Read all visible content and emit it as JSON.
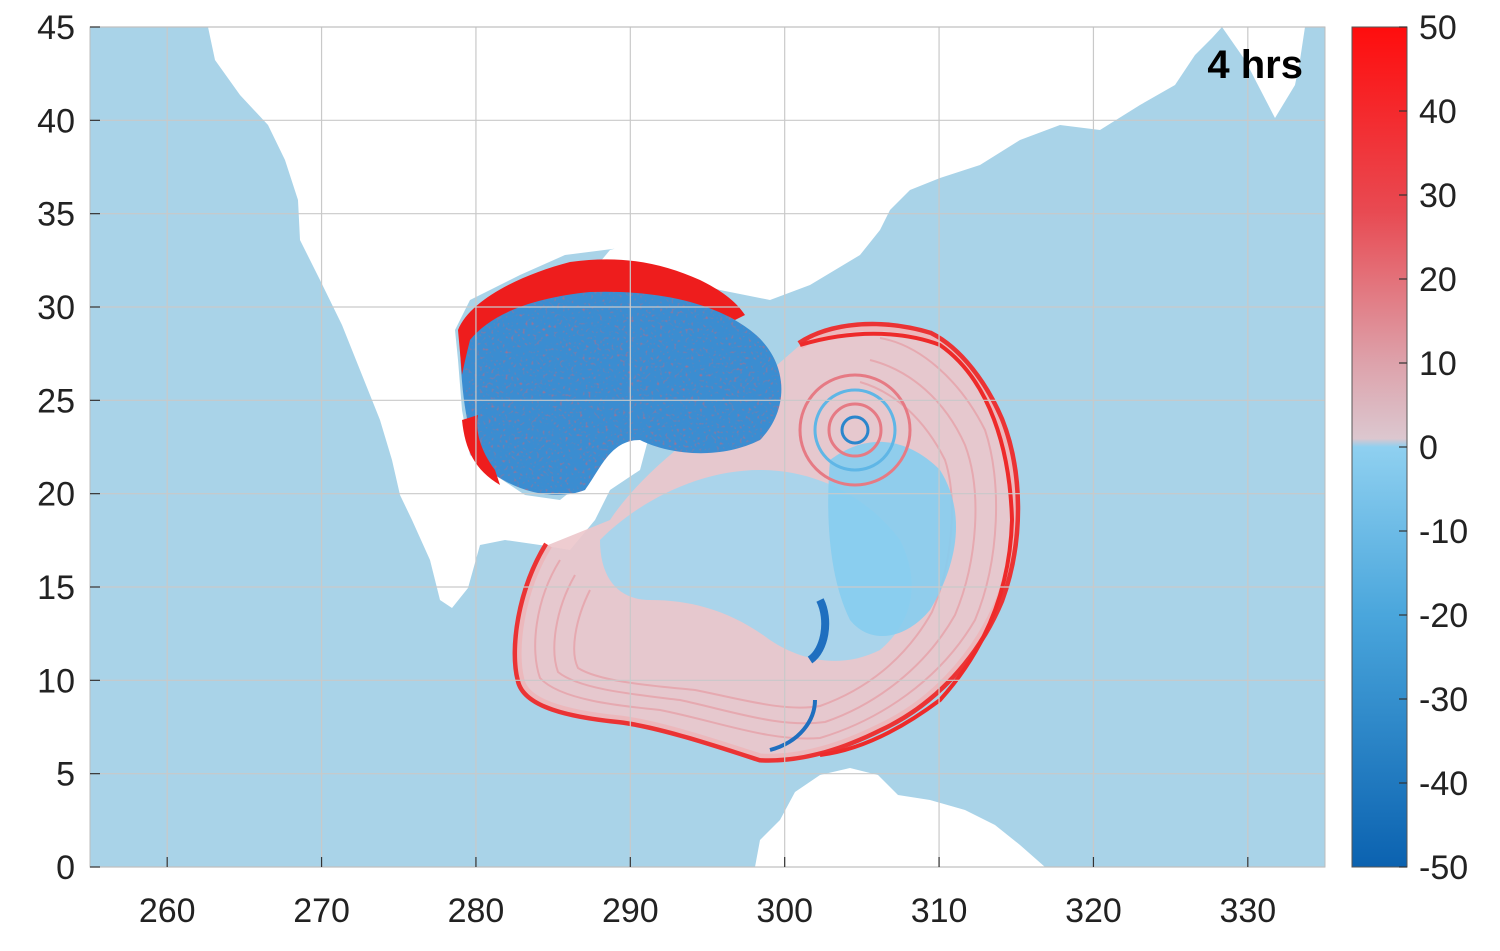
{
  "chart_data": {
    "type": "heatmap",
    "title": "",
    "annotation": "4 hrs",
    "xlabel": "",
    "ylabel": "",
    "xlim": [
      255,
      335
    ],
    "ylim": [
      0,
      45
    ],
    "x_ticks": [
      260,
      270,
      280,
      290,
      300,
      310,
      320,
      330
    ],
    "y_ticks": [
      0,
      5,
      10,
      15,
      20,
      25,
      30,
      35,
      40,
      45
    ],
    "grid": true,
    "colorbar": {
      "range": [
        -50,
        50
      ],
      "ticks": [
        50,
        40,
        30,
        20,
        10,
        0,
        -10,
        -20,
        -30,
        -40,
        -50
      ],
      "colors": {
        "max": "#ff0d0d",
        "mid_positive": "#dcc7cf",
        "zero_low": "#8fd0f0",
        "min": "#0b62b0"
      }
    },
    "background_value": 0,
    "colors": {
      "ocean": "#a9d3e8",
      "land": "#ffffff",
      "grid": "#c9c9c9",
      "positive": "#ee1d1d",
      "negative": "#1f6fbf",
      "light_blue": "#8fd0f0",
      "pink": "#e8b9bd"
    }
  }
}
